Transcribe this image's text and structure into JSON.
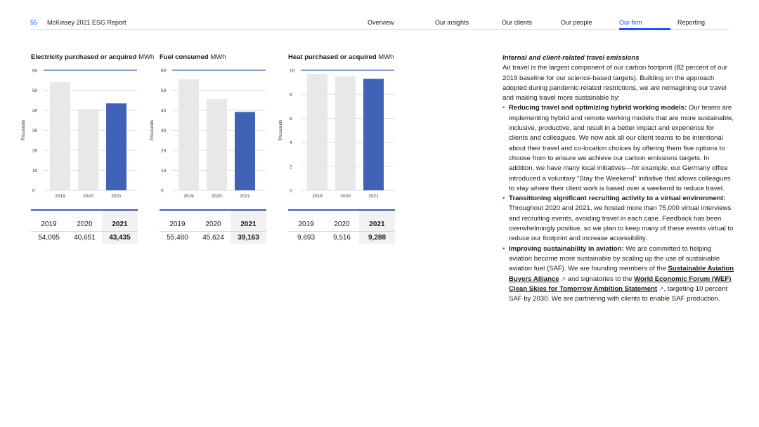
{
  "header": {
    "page_number": "55",
    "doc_title": "McKinsey 2021 ESG Report",
    "nav": [
      "Overview",
      "Our insights",
      "Our clients",
      "Our people",
      "Our firm",
      "Reporting"
    ],
    "active_nav": "Our firm"
  },
  "colors": {
    "accent": "#2251ff",
    "bar_grey": "#e8e8e8",
    "bar_blue": "#4262b8"
  },
  "chart_data": [
    {
      "type": "bar",
      "title": "Electricity purchased or acquired",
      "unit": "MWh",
      "ylabel": "Thousands",
      "categories": [
        "2019",
        "2020",
        "2021"
      ],
      "values": [
        54.095,
        40.651,
        43.435
      ],
      "yticks": [
        "0",
        "10",
        "20",
        "30",
        "40",
        "50",
        "60"
      ],
      "ylim": [
        0,
        60
      ],
      "table": {
        "years": [
          "2019",
          "2020",
          "2021"
        ],
        "values": [
          "54,095",
          "40,651",
          "43,435"
        ]
      }
    },
    {
      "type": "bar",
      "title": "Fuel consumed",
      "unit": "MWh",
      "ylabel": "Thousands",
      "categories": [
        "2019",
        "2020",
        "2021"
      ],
      "values": [
        55.48,
        45.624,
        39.163
      ],
      "yticks": [
        "0",
        "10",
        "20",
        "30",
        "40",
        "50",
        "60"
      ],
      "ylim": [
        0,
        60
      ],
      "table": {
        "years": [
          "2019",
          "2020",
          "2021"
        ],
        "values": [
          "55,480",
          "45,624",
          "39,163"
        ]
      }
    },
    {
      "type": "bar",
      "title": "Heat purchased or acquired",
      "unit": "MWh",
      "ylabel": "Thousands",
      "categories": [
        "2019",
        "2020",
        "2021"
      ],
      "values": [
        9.693,
        9.516,
        9.288
      ],
      "yticks": [
        "0",
        "2",
        "4",
        "6",
        "8",
        "10"
      ],
      "ylim": [
        0,
        10
      ],
      "table": {
        "years": [
          "2019",
          "2020",
          "2021"
        ],
        "values": [
          "9,693",
          "9,516",
          "9,288"
        ]
      }
    }
  ],
  "text": {
    "heading": "Internal and client-related travel emissions",
    "intro": "Air travel is the largest component of our carbon footprint (82 percent of our 2019 baseline for our science-based targets). Building on the approach adopted during pandemic-related restrictions, we are reimagining our travel and making travel more sustainable by:",
    "b1_bold": "Reducing travel and optimizing hybrid working models:",
    "b1_text": " Our teams are implementing hybrid and remote working models that are more sustainable, inclusive, productive, and result in a better impact and experience for clients and colleagues. We now ask all our client teams to be intentional about their travel and co-location choices by offering them five options to choose from to ensure we achieve our carbon emissions targets. In addition, we have many local initiatives—for example, our Germany office introduced a voluntary “Stay the Weekend” initiative that allows colleagues to stay where their client work is based over a weekend to reduce travel.",
    "b2_bold": "Transitioning significant recruiting activity to a virtual environment:",
    "b2_text": " Throughout 2020 and 2021, we hosted more than 75,000 virtual interviews and recruiting events, avoiding travel in each case. Feedback has been overwhelmingly positive, so we plan to keep many of these events virtual to reduce our footprint and increase accessibility.",
    "b3_bold": "Improving sustainability in aviation:",
    "b3_text1": " We are committed to helping aviation become more sustainable by scaling up the use of sustainable aviation fuel (SAF). We are founding members of the ",
    "b3_link1": "Sustainable Aviation Buyers Alliance",
    "b3_text2": " and signatories to the ",
    "b3_link2": "World Economic Forum (WEF) Clean Skies for Tomorrow Ambition Statement",
    "b3_text3": ", targeting 10 percent SAF by 2030. We are partnering with clients to enable SAF production."
  }
}
